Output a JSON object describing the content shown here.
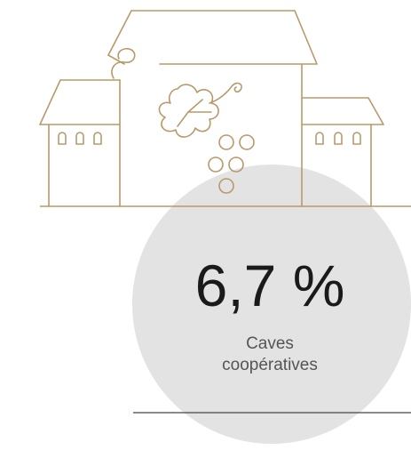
{
  "stat": {
    "value": "6,7 %",
    "label_lines": [
      "Caves",
      "coopératives"
    ]
  }
}
